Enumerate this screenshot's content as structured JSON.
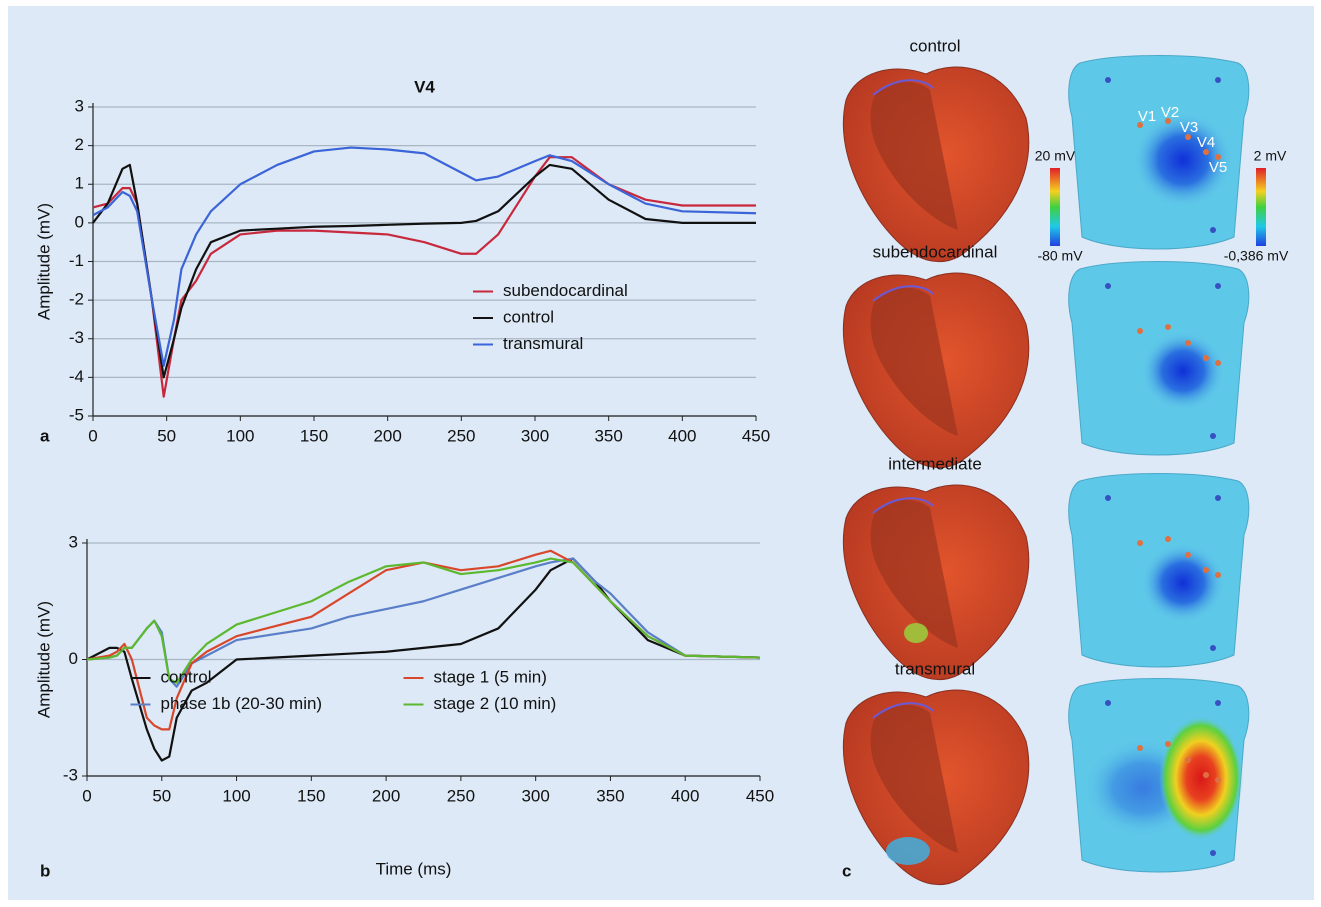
{
  "chart_data": [
    {
      "type": "line",
      "title": "V4",
      "panel": "a",
      "ylabel": "Amplitude (mV)",
      "x": [
        0,
        10,
        20,
        25,
        30,
        40,
        48,
        55,
        60,
        70,
        80,
        100,
        125,
        150,
        175,
        200,
        225,
        250,
        260,
        275,
        300,
        310,
        325,
        350,
        375,
        400,
        450
      ],
      "series": [
        {
          "name": "subendocardinal",
          "color": "#c8283c",
          "values": [
            0.4,
            0.5,
            0.9,
            0.9,
            0.5,
            -2.0,
            -4.5,
            -3.0,
            -2.0,
            -1.5,
            -0.8,
            -0.3,
            -0.2,
            -0.2,
            -0.25,
            -0.3,
            -0.5,
            -0.8,
            -0.8,
            -0.3,
            1.2,
            1.7,
            1.7,
            1.0,
            0.6,
            0.45,
            0.45
          ]
        },
        {
          "name": "control",
          "color": "#111111",
          "values": [
            0,
            0.5,
            1.4,
            1.5,
            0.5,
            -2.0,
            -4.0,
            -3.0,
            -2.2,
            -1.2,
            -0.5,
            -0.2,
            -0.15,
            -0.1,
            -0.08,
            -0.05,
            -0.02,
            0,
            0.05,
            0.3,
            1.2,
            1.5,
            1.4,
            0.6,
            0.1,
            0,
            0
          ]
        },
        {
          "name": "transmural",
          "color": "#3a64d8",
          "values": [
            0.2,
            0.4,
            0.8,
            0.7,
            0.3,
            -2.0,
            -3.7,
            -2.5,
            -1.2,
            -0.3,
            0.3,
            1.0,
            1.5,
            1.85,
            1.95,
            1.9,
            1.8,
            1.3,
            1.1,
            1.2,
            1.6,
            1.75,
            1.6,
            1.0,
            0.5,
            0.3,
            0.25
          ]
        }
      ],
      "xlim": [
        0,
        450
      ],
      "xticks": [
        0,
        50,
        100,
        150,
        200,
        250,
        300,
        350,
        400,
        450
      ],
      "ylim": [
        -5,
        3
      ],
      "yticks": [
        -5,
        -4,
        -3,
        -2,
        -1,
        0,
        1,
        2,
        3
      ],
      "grid": true,
      "legend": "lower right",
      "legend_columns": 1
    },
    {
      "type": "line",
      "panel": "b",
      "ylabel": "Amplitude (mV)",
      "xlabel": "Time (ms)",
      "x": [
        0,
        15,
        20,
        25,
        30,
        40,
        45,
        50,
        55,
        60,
        70,
        80,
        100,
        150,
        175,
        200,
        225,
        250,
        275,
        300,
        310,
        325,
        340,
        350,
        375,
        400,
        450
      ],
      "series": [
        {
          "name": "control",
          "color": "#111111",
          "values": [
            0,
            0.3,
            0.3,
            0.2,
            -0.5,
            -1.8,
            -2.3,
            -2.6,
            -2.5,
            -1.5,
            -0.8,
            -0.6,
            0,
            0.1,
            0.15,
            0.2,
            0.3,
            0.4,
            0.8,
            1.8,
            2.3,
            2.6,
            2.0,
            1.5,
            0.5,
            0.1,
            0.05
          ]
        },
        {
          "name": "phase 1b (20-30 min)",
          "color": "#5a7fc8",
          "values": [
            0,
            0.05,
            0.1,
            0.3,
            0.3,
            0.8,
            1.0,
            0.7,
            -0.5,
            -0.7,
            -0.1,
            0.1,
            0.5,
            0.8,
            1.1,
            1.3,
            1.5,
            1.8,
            2.1,
            2.4,
            2.5,
            2.6,
            2.0,
            1.7,
            0.7,
            0.1,
            0.05
          ]
        },
        {
          "name": "stage 1 (5 min)",
          "color": "#d9472b",
          "values": [
            0,
            0.1,
            0.2,
            0.4,
            0,
            -1.5,
            -1.7,
            -1.8,
            -1.8,
            -1.0,
            -0.1,
            0.2,
            0.6,
            1.1,
            1.7,
            2.3,
            2.5,
            2.3,
            2.4,
            2.7,
            2.8,
            2.5,
            1.9,
            1.5,
            0.6,
            0.1,
            0.05
          ]
        },
        {
          "name": "stage 2 (10 min)",
          "color": "#5cb82e",
          "values": [
            0,
            0.05,
            0.1,
            0.3,
            0.3,
            0.8,
            1.0,
            0.6,
            -0.5,
            -0.6,
            0,
            0.4,
            0.9,
            1.5,
            2.0,
            2.4,
            2.5,
            2.2,
            2.3,
            2.5,
            2.6,
            2.5,
            1.9,
            1.5,
            0.6,
            0.1,
            0.05
          ]
        }
      ],
      "xlim": [
        0,
        450
      ],
      "xticks": [
        0,
        50,
        100,
        150,
        200,
        250,
        300,
        350,
        400,
        450
      ],
      "ylim": [
        -3,
        3
      ],
      "yticks": [
        -3,
        0,
        3
      ],
      "grid": true,
      "legend": "lower center",
      "legend_columns": 2
    }
  ],
  "panel_c": {
    "label": "c",
    "rows": [
      "control",
      "subendocardinal",
      "intermediate",
      "transmural"
    ],
    "leads": [
      "V1",
      "V2",
      "V3",
      "V4",
      "V5"
    ],
    "heart_scale": {
      "max": "20 mV",
      "min": "-80 mV"
    },
    "torso_scale": {
      "max": "2 mV",
      "min": "-0,386 mV"
    }
  }
}
